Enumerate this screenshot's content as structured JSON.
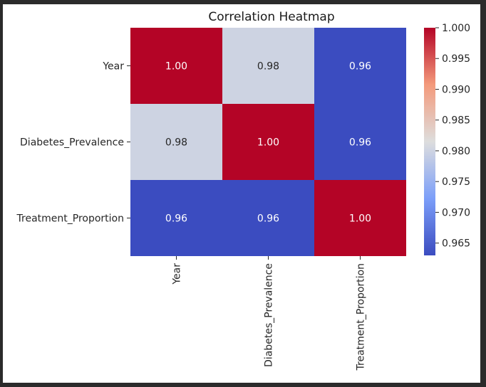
{
  "chart_data": {
    "type": "heatmap",
    "title": "Correlation Heatmap",
    "rows": [
      "Year",
      "Diabetes_Prevalence",
      "Treatment_Proportion"
    ],
    "columns": [
      "Year",
      "Diabetes_Prevalence",
      "Treatment_Proportion"
    ],
    "values": [
      [
        1.0,
        0.98,
        0.96
      ],
      [
        0.98,
        1.0,
        0.96
      ],
      [
        0.96,
        0.96,
        1.0
      ]
    ],
    "cell_labels": [
      [
        "1.00",
        "0.98",
        "0.96"
      ],
      [
        "0.98",
        "1.00",
        "0.96"
      ],
      [
        "0.96",
        "0.96",
        "1.00"
      ]
    ],
    "colormap": "coolwarm",
    "colorbar": {
      "range": [
        0.963,
        1.0
      ],
      "ticks": [
        1.0,
        0.995,
        0.99,
        0.985,
        0.98,
        0.975,
        0.97,
        0.965
      ],
      "tick_labels": [
        "1.000",
        "0.995",
        "0.990",
        "0.985",
        "0.980",
        "0.975",
        "0.970",
        "0.965"
      ]
    },
    "xlabel": "",
    "ylabel": "",
    "colors": {
      "low": "#3b4cc0",
      "mid": "#dddddd",
      "high": "#b40426"
    }
  }
}
